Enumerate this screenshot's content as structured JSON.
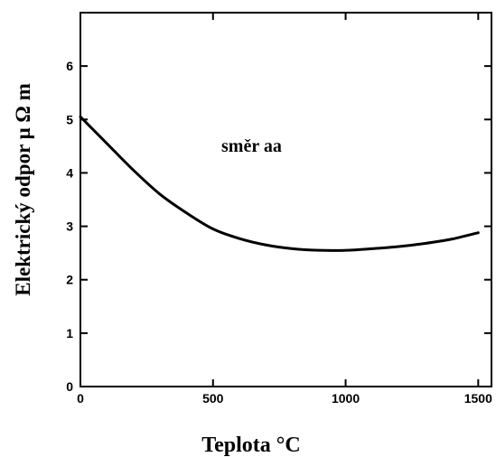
{
  "chart_data": {
    "type": "line",
    "title": "",
    "xlabel": "Teplota  °C",
    "ylabel": "Elektrický odpor   μ Ω m",
    "xlim": [
      0,
      1550
    ],
    "ylim": [
      0,
      7
    ],
    "x_ticks": [
      0,
      500,
      1000,
      1500
    ],
    "y_ticks": [
      0,
      1,
      2,
      3,
      4,
      5,
      6
    ],
    "x_tick_labels": [
      "0",
      "500",
      "1000",
      "1500"
    ],
    "y_tick_labels": [
      "0",
      "1",
      "2",
      "3",
      "4",
      "5",
      "6"
    ],
    "annotation": "směr aa",
    "grid": false,
    "series": [
      {
        "x": [
          0,
          100,
          200,
          300,
          400,
          500,
          600,
          700,
          800,
          900,
          1000,
          1100,
          1200,
          1300,
          1400,
          1500
        ],
        "y": [
          5.05,
          4.55,
          4.05,
          3.6,
          3.25,
          2.95,
          2.77,
          2.65,
          2.58,
          2.55,
          2.55,
          2.58,
          2.62,
          2.68,
          2.76,
          2.88
        ]
      }
    ]
  }
}
